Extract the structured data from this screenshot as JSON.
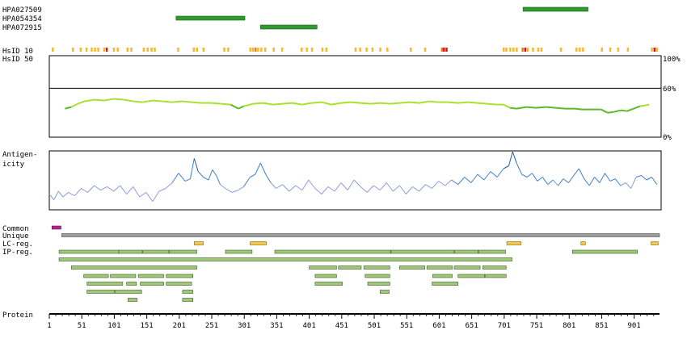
{
  "chart_data": {
    "type": "protein-feature-map",
    "protein_length": 940,
    "antibodies": [
      {
        "name": "HPA027509",
        "start": 730,
        "end": 830
      },
      {
        "name": "HPA054354",
        "start": 196,
        "end": 302
      },
      {
        "name": "HPA072915",
        "start": 326,
        "end": 413
      }
    ],
    "track_labels": {
      "hsid10": "HsID 10",
      "hsid50": "HsID 50",
      "antigenicity_line1": "Antigen-",
      "antigenicity_line2": "icity",
      "common": "Common",
      "unique": "Unique",
      "lc_reg": "LC-reg.",
      "ip_reg": "IP-reg.",
      "protein": "Protein"
    },
    "identity_axis": {
      "ticks": [
        "100%",
        "60%",
        "0%"
      ],
      "values": [
        100,
        60,
        0
      ],
      "reference": 60
    },
    "hsid10_marks": [
      {
        "pos": 6,
        "level": "low"
      },
      {
        "pos": 37,
        "level": "low"
      },
      {
        "pos": 49,
        "level": "low"
      },
      {
        "pos": 58,
        "level": "low"
      },
      {
        "pos": 66,
        "level": "low"
      },
      {
        "pos": 71,
        "level": "low"
      },
      {
        "pos": 76,
        "level": "low"
      },
      {
        "pos": 85,
        "level": "low"
      },
      {
        "pos": 89,
        "level": "high"
      },
      {
        "pos": 100,
        "level": "low"
      },
      {
        "pos": 106,
        "level": "low"
      },
      {
        "pos": 121,
        "level": "low"
      },
      {
        "pos": 127,
        "level": "low"
      },
      {
        "pos": 146,
        "level": "low"
      },
      {
        "pos": 152,
        "level": "low"
      },
      {
        "pos": 158,
        "level": "low"
      },
      {
        "pos": 163,
        "level": "low"
      },
      {
        "pos": 199,
        "level": "low"
      },
      {
        "pos": 223,
        "level": "low"
      },
      {
        "pos": 228,
        "level": "low"
      },
      {
        "pos": 238,
        "level": "low"
      },
      {
        "pos": 270,
        "level": "low"
      },
      {
        "pos": 276,
        "level": "low"
      },
      {
        "pos": 310,
        "level": "low"
      },
      {
        "pos": 314,
        "level": "low"
      },
      {
        "pos": 318,
        "level": "mid"
      },
      {
        "pos": 322,
        "level": "low"
      },
      {
        "pos": 327,
        "level": "low"
      },
      {
        "pos": 333,
        "level": "low"
      },
      {
        "pos": 346,
        "level": "low"
      },
      {
        "pos": 359,
        "level": "low"
      },
      {
        "pos": 389,
        "level": "low"
      },
      {
        "pos": 397,
        "level": "low"
      },
      {
        "pos": 405,
        "level": "low"
      },
      {
        "pos": 421,
        "level": "low"
      },
      {
        "pos": 427,
        "level": "low"
      },
      {
        "pos": 472,
        "level": "low"
      },
      {
        "pos": 479,
        "level": "low"
      },
      {
        "pos": 489,
        "level": "low"
      },
      {
        "pos": 498,
        "level": "low"
      },
      {
        "pos": 510,
        "level": "low"
      },
      {
        "pos": 521,
        "level": "low"
      },
      {
        "pos": 557,
        "level": "low"
      },
      {
        "pos": 579,
        "level": "low"
      },
      {
        "pos": 605,
        "level": "mid"
      },
      {
        "pos": 608,
        "level": "high"
      },
      {
        "pos": 612,
        "level": "high"
      },
      {
        "pos": 700,
        "level": "low"
      },
      {
        "pos": 704,
        "level": "low"
      },
      {
        "pos": 710,
        "level": "low"
      },
      {
        "pos": 715,
        "level": "low"
      },
      {
        "pos": 720,
        "level": "low"
      },
      {
        "pos": 729,
        "level": "mid"
      },
      {
        "pos": 733,
        "level": "high"
      },
      {
        "pos": 737,
        "level": "low"
      },
      {
        "pos": 745,
        "level": "low"
      },
      {
        "pos": 753,
        "level": "low"
      },
      {
        "pos": 758,
        "level": "low"
      },
      {
        "pos": 788,
        "level": "low"
      },
      {
        "pos": 812,
        "level": "low"
      },
      {
        "pos": 817,
        "level": "low"
      },
      {
        "pos": 822,
        "level": "low"
      },
      {
        "pos": 851,
        "level": "low"
      },
      {
        "pos": 864,
        "level": "low"
      },
      {
        "pos": 876,
        "level": "low"
      },
      {
        "pos": 891,
        "level": "low"
      },
      {
        "pos": 928,
        "level": "low"
      },
      {
        "pos": 932,
        "level": "high"
      },
      {
        "pos": 936,
        "level": "low"
      }
    ],
    "hsid50_profile": [
      {
        "x": 25,
        "y": 35
      },
      {
        "x": 35,
        "y": 37
      },
      {
        "x": 45,
        "y": 41
      },
      {
        "x": 55,
        "y": 44
      },
      {
        "x": 70,
        "y": 46
      },
      {
        "x": 85,
        "y": 45
      },
      {
        "x": 100,
        "y": 47
      },
      {
        "x": 115,
        "y": 46
      },
      {
        "x": 130,
        "y": 44
      },
      {
        "x": 145,
        "y": 43
      },
      {
        "x": 160,
        "y": 45
      },
      {
        "x": 175,
        "y": 44
      },
      {
        "x": 190,
        "y": 43
      },
      {
        "x": 205,
        "y": 44
      },
      {
        "x": 220,
        "y": 43
      },
      {
        "x": 235,
        "y": 42
      },
      {
        "x": 250,
        "y": 42
      },
      {
        "x": 265,
        "y": 41
      },
      {
        "x": 280,
        "y": 40
      },
      {
        "x": 292,
        "y": 35
      },
      {
        "x": 300,
        "y": 38
      },
      {
        "x": 315,
        "y": 41
      },
      {
        "x": 330,
        "y": 42
      },
      {
        "x": 345,
        "y": 40
      },
      {
        "x": 360,
        "y": 41
      },
      {
        "x": 375,
        "y": 42
      },
      {
        "x": 390,
        "y": 40
      },
      {
        "x": 405,
        "y": 42
      },
      {
        "x": 420,
        "y": 43
      },
      {
        "x": 435,
        "y": 40
      },
      {
        "x": 450,
        "y": 42
      },
      {
        "x": 465,
        "y": 43
      },
      {
        "x": 480,
        "y": 42
      },
      {
        "x": 495,
        "y": 41
      },
      {
        "x": 510,
        "y": 42
      },
      {
        "x": 525,
        "y": 41
      },
      {
        "x": 540,
        "y": 42
      },
      {
        "x": 555,
        "y": 43
      },
      {
        "x": 570,
        "y": 42
      },
      {
        "x": 585,
        "y": 44
      },
      {
        "x": 600,
        "y": 43
      },
      {
        "x": 615,
        "y": 43
      },
      {
        "x": 630,
        "y": 42
      },
      {
        "x": 645,
        "y": 43
      },
      {
        "x": 660,
        "y": 42
      },
      {
        "x": 675,
        "y": 41
      },
      {
        "x": 690,
        "y": 40
      },
      {
        "x": 700,
        "y": 40
      },
      {
        "x": 710,
        "y": 36
      },
      {
        "x": 720,
        "y": 35
      },
      {
        "x": 735,
        "y": 37
      },
      {
        "x": 750,
        "y": 36
      },
      {
        "x": 765,
        "y": 37
      },
      {
        "x": 780,
        "y": 36
      },
      {
        "x": 795,
        "y": 35
      },
      {
        "x": 810,
        "y": 35
      },
      {
        "x": 820,
        "y": 34
      },
      {
        "x": 850,
        "y": 34
      },
      {
        "x": 860,
        "y": 30
      },
      {
        "x": 870,
        "y": 31
      },
      {
        "x": 880,
        "y": 33
      },
      {
        "x": 890,
        "y": 32
      },
      {
        "x": 900,
        "y": 35
      },
      {
        "x": 910,
        "y": 38
      },
      {
        "x": 918,
        "y": 39
      },
      {
        "x": 924,
        "y": 40
      }
    ],
    "antigenicity_profile": [
      {
        "x": 1,
        "y": 0.25
      },
      {
        "x": 8,
        "y": 0.15
      },
      {
        "x": 15,
        "y": 0.3
      },
      {
        "x": 22,
        "y": 0.2
      },
      {
        "x": 30,
        "y": 0.28
      },
      {
        "x": 40,
        "y": 0.22
      },
      {
        "x": 50,
        "y": 0.35
      },
      {
        "x": 60,
        "y": 0.28
      },
      {
        "x": 70,
        "y": 0.4
      },
      {
        "x": 80,
        "y": 0.32
      },
      {
        "x": 90,
        "y": 0.38
      },
      {
        "x": 100,
        "y": 0.3
      },
      {
        "x": 110,
        "y": 0.4
      },
      {
        "x": 120,
        "y": 0.25
      },
      {
        "x": 130,
        "y": 0.38
      },
      {
        "x": 140,
        "y": 0.2
      },
      {
        "x": 150,
        "y": 0.28
      },
      {
        "x": 160,
        "y": 0.12
      },
      {
        "x": 170,
        "y": 0.3
      },
      {
        "x": 180,
        "y": 0.35
      },
      {
        "x": 190,
        "y": 0.45
      },
      {
        "x": 200,
        "y": 0.62
      },
      {
        "x": 210,
        "y": 0.48
      },
      {
        "x": 218,
        "y": 0.52
      },
      {
        "x": 224,
        "y": 0.88
      },
      {
        "x": 230,
        "y": 0.65
      },
      {
        "x": 238,
        "y": 0.55
      },
      {
        "x": 246,
        "y": 0.5
      },
      {
        "x": 252,
        "y": 0.68
      },
      {
        "x": 258,
        "y": 0.58
      },
      {
        "x": 264,
        "y": 0.42
      },
      {
        "x": 272,
        "y": 0.35
      },
      {
        "x": 282,
        "y": 0.28
      },
      {
        "x": 292,
        "y": 0.32
      },
      {
        "x": 300,
        "y": 0.38
      },
      {
        "x": 310,
        "y": 0.55
      },
      {
        "x": 318,
        "y": 0.6
      },
      {
        "x": 326,
        "y": 0.8
      },
      {
        "x": 334,
        "y": 0.6
      },
      {
        "x": 342,
        "y": 0.45
      },
      {
        "x": 350,
        "y": 0.35
      },
      {
        "x": 360,
        "y": 0.42
      },
      {
        "x": 370,
        "y": 0.3
      },
      {
        "x": 380,
        "y": 0.4
      },
      {
        "x": 390,
        "y": 0.32
      },
      {
        "x": 400,
        "y": 0.5
      },
      {
        "x": 410,
        "y": 0.35
      },
      {
        "x": 420,
        "y": 0.25
      },
      {
        "x": 430,
        "y": 0.38
      },
      {
        "x": 440,
        "y": 0.3
      },
      {
        "x": 450,
        "y": 0.45
      },
      {
        "x": 460,
        "y": 0.32
      },
      {
        "x": 470,
        "y": 0.5
      },
      {
        "x": 480,
        "y": 0.38
      },
      {
        "x": 490,
        "y": 0.28
      },
      {
        "x": 500,
        "y": 0.4
      },
      {
        "x": 510,
        "y": 0.32
      },
      {
        "x": 520,
        "y": 0.45
      },
      {
        "x": 530,
        "y": 0.3
      },
      {
        "x": 540,
        "y": 0.4
      },
      {
        "x": 550,
        "y": 0.25
      },
      {
        "x": 560,
        "y": 0.38
      },
      {
        "x": 570,
        "y": 0.3
      },
      {
        "x": 580,
        "y": 0.42
      },
      {
        "x": 590,
        "y": 0.35
      },
      {
        "x": 600,
        "y": 0.48
      },
      {
        "x": 610,
        "y": 0.4
      },
      {
        "x": 620,
        "y": 0.5
      },
      {
        "x": 630,
        "y": 0.42
      },
      {
        "x": 640,
        "y": 0.55
      },
      {
        "x": 650,
        "y": 0.45
      },
      {
        "x": 660,
        "y": 0.6
      },
      {
        "x": 670,
        "y": 0.5
      },
      {
        "x": 680,
        "y": 0.65
      },
      {
        "x": 690,
        "y": 0.55
      },
      {
        "x": 700,
        "y": 0.7
      },
      {
        "x": 708,
        "y": 0.75
      },
      {
        "x": 714,
        "y": 1.0
      },
      {
        "x": 720,
        "y": 0.8
      },
      {
        "x": 728,
        "y": 0.6
      },
      {
        "x": 736,
        "y": 0.55
      },
      {
        "x": 744,
        "y": 0.62
      },
      {
        "x": 752,
        "y": 0.48
      },
      {
        "x": 760,
        "y": 0.55
      },
      {
        "x": 768,
        "y": 0.42
      },
      {
        "x": 776,
        "y": 0.5
      },
      {
        "x": 784,
        "y": 0.4
      },
      {
        "x": 792,
        "y": 0.52
      },
      {
        "x": 800,
        "y": 0.45
      },
      {
        "x": 808,
        "y": 0.58
      },
      {
        "x": 816,
        "y": 0.7
      },
      {
        "x": 824,
        "y": 0.52
      },
      {
        "x": 832,
        "y": 0.4
      },
      {
        "x": 840,
        "y": 0.55
      },
      {
        "x": 848,
        "y": 0.45
      },
      {
        "x": 856,
        "y": 0.62
      },
      {
        "x": 864,
        "y": 0.48
      },
      {
        "x": 872,
        "y": 0.52
      },
      {
        "x": 880,
        "y": 0.4
      },
      {
        "x": 888,
        "y": 0.45
      },
      {
        "x": 896,
        "y": 0.35
      },
      {
        "x": 904,
        "y": 0.55
      },
      {
        "x": 912,
        "y": 0.58
      },
      {
        "x": 920,
        "y": 0.5
      },
      {
        "x": 928,
        "y": 0.55
      },
      {
        "x": 936,
        "y": 0.42
      }
    ],
    "common_regions": [
      {
        "start": 5,
        "end": 19
      }
    ],
    "unique_regions": [
      {
        "start": 20,
        "end": 940
      }
    ],
    "lc_regions": [
      {
        "start": 224,
        "end": 238
      },
      {
        "start": 310,
        "end": 335
      },
      {
        "start": 705,
        "end": 727
      },
      {
        "start": 819,
        "end": 826
      },
      {
        "start": 927,
        "end": 938
      }
    ],
    "ip_regions": [
      [
        {
          "start": 16,
          "end": 108
        },
        {
          "start": 108,
          "end": 144
        },
        {
          "start": 145,
          "end": 185
        },
        {
          "start": 186,
          "end": 228
        },
        {
          "start": 272,
          "end": 313
        },
        {
          "start": 348,
          "end": 526
        },
        {
          "start": 527,
          "end": 624
        },
        {
          "start": 625,
          "end": 661
        },
        {
          "start": 662,
          "end": 703
        },
        {
          "start": 806,
          "end": 906
        }
      ],
      [
        {
          "start": 16,
          "end": 713
        }
      ],
      [
        {
          "start": 35,
          "end": 228
        },
        {
          "start": 401,
          "end": 443
        },
        {
          "start": 446,
          "end": 481
        },
        {
          "start": 485,
          "end": 525
        },
        {
          "start": 540,
          "end": 579
        },
        {
          "start": 582,
          "end": 621
        },
        {
          "start": 624,
          "end": 664
        },
        {
          "start": 668,
          "end": 704
        }
      ],
      [
        {
          "start": 54,
          "end": 92
        },
        {
          "start": 95,
          "end": 134
        },
        {
          "start": 138,
          "end": 177
        },
        {
          "start": 181,
          "end": 222
        },
        {
          "start": 410,
          "end": 443
        },
        {
          "start": 487,
          "end": 525
        },
        {
          "start": 591,
          "end": 621
        },
        {
          "start": 630,
          "end": 671
        },
        {
          "start": 672,
          "end": 704
        }
      ],
      [
        {
          "start": 59,
          "end": 114
        },
        {
          "start": 120,
          "end": 135
        },
        {
          "start": 141,
          "end": 177
        },
        {
          "start": 181,
          "end": 220
        },
        {
          "start": 410,
          "end": 452
        },
        {
          "start": 491,
          "end": 525
        },
        {
          "start": 590,
          "end": 630
        }
      ],
      [
        {
          "start": 59,
          "end": 101
        },
        {
          "start": 102,
          "end": 143
        },
        {
          "start": 206,
          "end": 222
        },
        {
          "start": 510,
          "end": 524
        }
      ],
      [
        {
          "start": 122,
          "end": 136
        },
        {
          "start": 206,
          "end": 222
        }
      ]
    ],
    "x_ticks": [
      1,
      51,
      101,
      151,
      201,
      251,
      301,
      351,
      401,
      451,
      501,
      551,
      601,
      651,
      701,
      751,
      801,
      851,
      901
    ]
  }
}
